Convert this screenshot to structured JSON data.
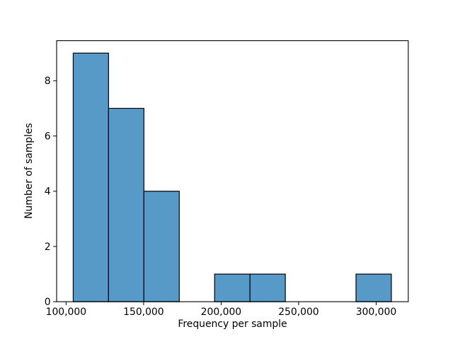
{
  "chart_data": {
    "type": "bar",
    "subtype": "histogram",
    "xlabel": "Frequency per sample",
    "ylabel": "Number of samples",
    "bin_edges": [
      104600,
      127400,
      150200,
      173000,
      195800,
      218600,
      241400,
      264200,
      287000,
      309800
    ],
    "counts": [
      9,
      7,
      4,
      0,
      1,
      1,
      0,
      0,
      1
    ],
    "x_ticks": [
      100000,
      150000,
      200000,
      250000,
      300000
    ],
    "x_tick_labels": [
      "100,000",
      "150,000",
      "200,000",
      "250,000",
      "300,000"
    ],
    "y_ticks": [
      0,
      2,
      4,
      6,
      8
    ],
    "y_tick_labels": [
      "0",
      "2",
      "4",
      "6",
      "8"
    ],
    "xlim": [
      93900,
      320700
    ],
    "ylim": [
      0,
      9.45
    ],
    "grid": false,
    "legend": null,
    "colors": {
      "bar_fill": "#5799c7",
      "bar_edge": "#000000",
      "spine": "#000000",
      "tick": "#000000",
      "text": "#000000",
      "background": "#ffffff"
    }
  }
}
